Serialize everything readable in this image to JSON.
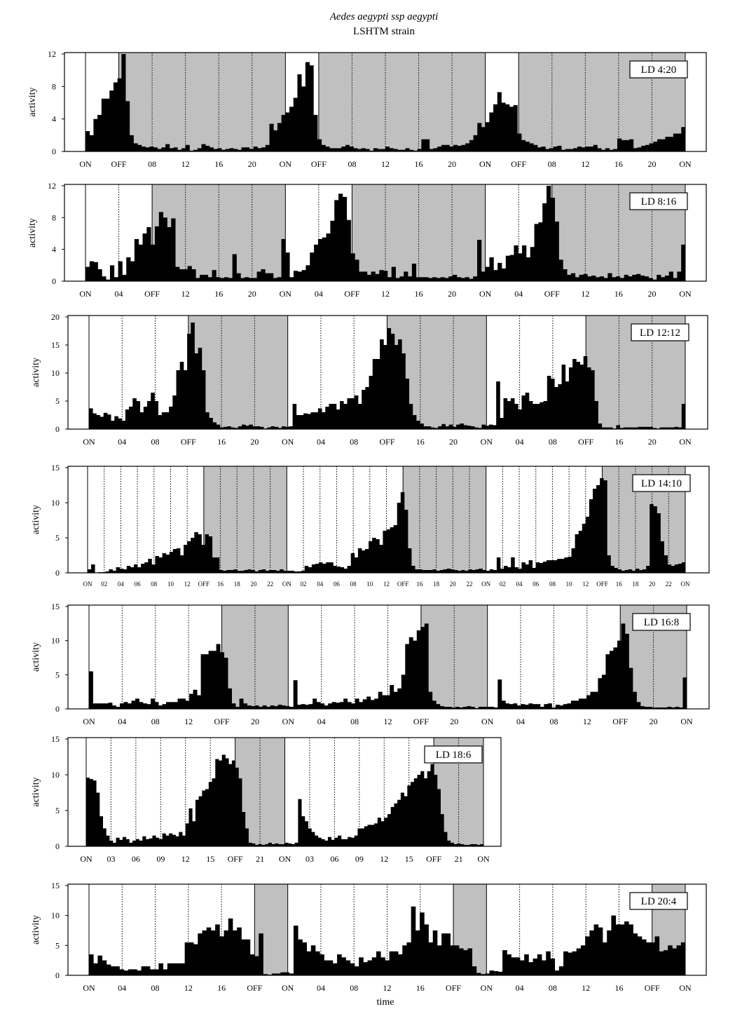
{
  "figure": {
    "title": "Aedes aegypti ssp aegypti",
    "subtitle": "LSHTM strain",
    "xlabel": "time",
    "ylabel": "activity"
  },
  "colors": {
    "dark_phase": "#c0c0c0",
    "bars": "#000000",
    "light_phase": "#ffffff"
  },
  "chart_data": [
    {
      "type": "bar",
      "label": "LD 4:20",
      "light_hours": 4,
      "days": 3,
      "ylim": [
        0,
        12
      ],
      "yticks": [
        0,
        4,
        8,
        12
      ],
      "vline_style": {
        "on_off": "solid",
        "others": "dotted"
      },
      "xticks": [
        "ON",
        "OFF",
        "08",
        "12",
        "16",
        "20",
        "ON",
        "OFF",
        "08",
        "12",
        "16",
        "20",
        "ON",
        "OFF",
        "08",
        "12",
        "16",
        "20",
        "ON"
      ],
      "values": [
        2.5,
        2,
        4,
        4.5,
        6.5,
        6.5,
        7.5,
        8.5,
        9,
        12,
        6.2,
        2,
        1,
        0.8,
        0.6,
        0.5,
        0.6,
        0.5,
        0.3,
        0.5,
        0.9,
        0.4,
        0.5,
        0.2,
        0.4,
        0.8,
        0.1,
        0.2,
        0.4,
        0.9,
        0.7,
        0.5,
        0.3,
        0.4,
        0.2,
        0.3,
        0.4,
        0.3,
        0.2,
        0.5,
        0.5,
        0.3,
        0.6,
        0.4,
        0.5,
        0.8,
        3.4,
        2.6,
        3.5,
        4.5,
        4.8,
        5.5,
        6.6,
        9.5,
        8,
        11,
        10.6,
        4.5,
        1.5,
        0.8,
        0.6,
        0.4,
        0.4,
        0.4,
        0.6,
        0.8,
        0.6,
        0.4,
        0.3,
        0.4,
        0.3,
        0.1,
        0.4,
        0.3,
        0.3,
        0.6,
        0.4,
        0.3,
        0.2,
        0.2,
        0.4,
        0.2,
        0.1,
        0.3,
        1.5,
        1.5,
        0.3,
        0.4,
        0.6,
        0.8,
        0.8,
        0.6,
        0.8,
        0.7,
        0.8,
        1,
        1.4,
        2,
        3.5,
        3,
        3.6,
        4.8,
        5.8,
        7.3,
        6,
        5.8,
        5.5,
        5.7,
        2.2,
        1.4,
        1.2,
        1,
        0.8,
        0.5,
        0.6,
        0.3,
        0.4,
        0.6,
        0.7,
        0.2,
        0.3,
        0.3,
        0.4,
        0.6,
        0.5,
        0.6,
        0.6,
        0.8,
        0.4,
        0.2,
        0.4,
        0.2,
        0.3,
        1.6,
        1.4,
        1.4,
        1.5,
        0.4,
        0.5,
        0.7,
        0.8,
        1,
        1.2,
        1.5,
        1.5,
        1.8,
        1.8,
        2.2,
        2.2,
        3
      ]
    },
    {
      "type": "bar",
      "label": "LD 8:16",
      "light_hours": 8,
      "days": 3,
      "ylim": [
        0,
        12
      ],
      "yticks": [
        0,
        4,
        8,
        12
      ],
      "xticks": [
        "ON",
        "04",
        "OFF",
        "12",
        "16",
        "20",
        "ON",
        "04",
        "OFF",
        "12",
        "16",
        "20",
        "ON",
        "04",
        "OFF",
        "12",
        "16",
        "20",
        "ON"
      ],
      "values": [
        1.8,
        2.5,
        2.4,
        1.5,
        0.6,
        0.2,
        2,
        0.5,
        2.5,
        0.8,
        3,
        2.5,
        5.3,
        4.6,
        6,
        6.8,
        4.6,
        6.9,
        8.7,
        8,
        6.8,
        7.9,
        1.8,
        1.5,
        1.5,
        1.9,
        1.5,
        0.4,
        0.8,
        0.8,
        0.5,
        1.4,
        0.5,
        0.4,
        0.5,
        0.4,
        3.4,
        1,
        0.4,
        0.5,
        0.4,
        0.4,
        1.2,
        1.5,
        1,
        1,
        0.4,
        0.5,
        5.3,
        3.6,
        0.5,
        1.3,
        1.2,
        1.4,
        2,
        3.6,
        4.6,
        5.3,
        5.5,
        6,
        7.6,
        10.2,
        11,
        10.6,
        7.7,
        3.5,
        2.7,
        1.2,
        1.2,
        0.8,
        1.2,
        0.9,
        1.4,
        1.3,
        0.5,
        1.8,
        0.4,
        0.6,
        1.2,
        0.6,
        2.2,
        0.5,
        0.5,
        0.5,
        0.4,
        0.5,
        0.4,
        0.5,
        0.4,
        0.6,
        0.8,
        0.5,
        0.4,
        0.5,
        0.3,
        0.6,
        5.2,
        1.2,
        1.8,
        3,
        1.4,
        2.3,
        1.6,
        3.2,
        3.3,
        4.5,
        3.5,
        4.5,
        3,
        4.3,
        7.2,
        7.4,
        9.8,
        12,
        10.5,
        7.5,
        2.7,
        1.5,
        0.8,
        1,
        0.5,
        0.8,
        0.9,
        0.6,
        0.7,
        0.5,
        0.6,
        0.4,
        1,
        0.5,
        0.6,
        0.4,
        0.8,
        0.6,
        0.8,
        0.9,
        0.7,
        0.6,
        0.4,
        0.2,
        0.8,
        0.5,
        0.7,
        1.2,
        0.4,
        1.2,
        4.6
      ]
    },
    {
      "type": "bar",
      "label": "LD 12:12",
      "light_hours": 12,
      "days": 3,
      "ylim": [
        0,
        20
      ],
      "yticks": [
        0,
        5,
        10,
        15,
        20
      ],
      "xticks": [
        "ON",
        "04",
        "08",
        "OFF",
        "16",
        "20",
        "ON",
        "04",
        "08",
        "OFF",
        "16",
        "20",
        "ON",
        "04",
        "08",
        "OFF",
        "16",
        "20",
        "ON"
      ],
      "values": [
        3.7,
        2.8,
        2.5,
        2.2,
        2.9,
        2.6,
        1.5,
        2.3,
        1.9,
        1.5,
        3.5,
        4,
        5.5,
        5,
        3,
        4,
        5,
        6.5,
        5,
        2.5,
        3,
        3,
        4,
        6,
        10.5,
        12,
        10.5,
        17,
        19,
        13.5,
        14.5,
        10.5,
        3,
        2,
        1.2,
        0.8,
        0.3,
        0.4,
        0.5,
        0.3,
        0.2,
        0.5,
        0.8,
        0.6,
        0.8,
        0.5,
        0.5,
        0.4,
        0.1,
        0.3,
        0.5,
        0.4,
        0.2,
        0.5,
        0.4,
        0.5,
        4.5,
        2.5,
        2.5,
        2.8,
        2.7,
        3,
        3,
        3.7,
        3,
        4,
        4.5,
        4.5,
        3.5,
        5,
        4.5,
        5.5,
        5.5,
        6,
        4.5,
        7,
        7.5,
        9.5,
        12.5,
        12.5,
        16,
        15,
        18,
        17,
        15,
        16,
        13.5,
        9,
        4.5,
        2.5,
        1.5,
        1,
        0.5,
        0.5,
        0.3,
        0.2,
        0.5,
        0.9,
        0.5,
        0.8,
        0.4,
        0.8,
        1,
        0.7,
        0.6,
        0.5,
        0.3,
        0.2,
        0.8,
        0.6,
        0.8,
        0.7,
        8.5,
        2,
        5.5,
        5,
        5.5,
        4.5,
        3.5,
        6,
        6.5,
        5,
        4.5,
        4.5,
        4.8,
        5,
        9.5,
        9,
        7.5,
        8,
        11.5,
        8.5,
        11,
        12.5,
        12,
        11.5,
        13,
        11,
        10.5,
        5,
        1,
        0.3,
        0.3,
        0.3,
        0.1,
        0.7,
        0.2,
        0.3,
        0.3,
        0.3,
        0.3,
        0.4,
        0.4,
        0.4,
        0.4,
        0.2,
        0.1,
        0.3,
        0.3,
        0.3,
        0.3,
        0.4,
        0.3,
        4.5
      ]
    },
    {
      "type": "bar",
      "label": "LD 14:10",
      "light_hours": 14,
      "days": 3,
      "ylim": [
        0,
        15
      ],
      "yticks": [
        0,
        5,
        10,
        15
      ],
      "xticks": [
        "ON",
        "02",
        "04",
        "06",
        "08",
        "10",
        "12",
        "OFF",
        "16",
        "18",
        "20",
        "22",
        "ON",
        "02",
        "04",
        "06",
        "08",
        "10",
        "12",
        "OFF",
        "16",
        "18",
        "20",
        "22",
        "ON",
        "02",
        "04",
        "06",
        "08",
        "10",
        "12",
        "OFF",
        "16",
        "18",
        "20",
        "22",
        "ON"
      ],
      "values": [
        0.5,
        1.2,
        0,
        0.1,
        0.1,
        0.2,
        0.5,
        0.3,
        0.8,
        0.6,
        0.5,
        1,
        0.8,
        1.2,
        0.8,
        1.3,
        1.5,
        2,
        1.2,
        2.4,
        2.2,
        2.8,
        2.6,
        3,
        3.4,
        3.5,
        2.5,
        4,
        4.5,
        5,
        5.8,
        5.5,
        4,
        5.5,
        5.2,
        2.2,
        2.2,
        0.4,
        0.3,
        0.4,
        0.4,
        0.5,
        0.3,
        0.3,
        0.4,
        0.5,
        0.4,
        0.2,
        0.4,
        0.5,
        0.3,
        0.4,
        0.4,
        0.3,
        0.5,
        0.3,
        0.3,
        0.3,
        0.2,
        0.2,
        0.3,
        1,
        0.8,
        1.2,
        1.3,
        1.5,
        1.3,
        1.5,
        1.5,
        1,
        0.9,
        0.8,
        0.6,
        1,
        2.8,
        2.2,
        3.5,
        3.2,
        3.4,
        4.5,
        5,
        4.8,
        4,
        6,
        6.2,
        6.5,
        6.8,
        10,
        11.5,
        9,
        3.5,
        1,
        0.5,
        0.5,
        0.4,
        0.4,
        0.4,
        0.5,
        0.3,
        0.4,
        0.5,
        0.6,
        0.5,
        0.4,
        0.3,
        0.4,
        0.3,
        0.5,
        0.4,
        0.5,
        0.6,
        0.4,
        0.3,
        0.5,
        0.4,
        2.2,
        0.6,
        1,
        0.8,
        2.2,
        0.8,
        0.6,
        1.5,
        1.2,
        1.8,
        0.7,
        1.5,
        1.4,
        1.6,
        1.8,
        1.8,
        1.8,
        2,
        2,
        2.2,
        2.3,
        3.5,
        5.5,
        6,
        7,
        8,
        10.5,
        12,
        12.5,
        13.5,
        13.2,
        2.5,
        1,
        0.7,
        0.5,
        0.3,
        0.4,
        0.5,
        0.3,
        0.6,
        0.4,
        0.5,
        1,
        9.8,
        9.5,
        8.5,
        4.5,
        2.5,
        1.2,
        1,
        1.2,
        1.3,
        1.5
      ]
    },
    {
      "type": "bar",
      "label": "LD 16:8",
      "light_hours": 16,
      "days": 3,
      "ylim": [
        0,
        15
      ],
      "yticks": [
        0,
        5,
        10,
        15
      ],
      "xticks": [
        "ON",
        "04",
        "08",
        "12",
        "OFF",
        "20",
        "ON",
        "04",
        "08",
        "12",
        "OFF",
        "20",
        "ON",
        "04",
        "08",
        "12",
        "OFF",
        "20",
        "ON"
      ],
      "values": [
        5.5,
        0.8,
        0.8,
        0.8,
        0.8,
        0.9,
        0.5,
        0.3,
        0.8,
        1,
        0.8,
        1.2,
        1.5,
        1,
        0.8,
        0.7,
        1.5,
        1,
        0.5,
        0.7,
        1,
        1,
        1,
        1.5,
        1.5,
        1.2,
        2.2,
        2.8,
        2,
        8,
        8,
        8.5,
        8.5,
        9.5,
        8.3,
        7.5,
        3,
        0.8,
        0.3,
        1.5,
        0.8,
        0.5,
        0.4,
        0.5,
        0.3,
        0.5,
        0.3,
        0.5,
        0.4,
        0.6,
        0.5,
        0.4,
        0.3,
        4.2,
        0.6,
        0.7,
        0.6,
        0.7,
        1.5,
        1,
        0.8,
        0.5,
        0.8,
        1,
        0.9,
        1,
        1.5,
        1,
        0.8,
        1.5,
        1,
        1.4,
        1.8,
        1.3,
        1.5,
        2.5,
        2,
        2,
        3.5,
        2.5,
        3,
        5,
        9.5,
        10.5,
        10,
        11.5,
        12,
        12.5,
        2.5,
        1.2,
        0.7,
        0.4,
        0.3,
        0.3,
        0.2,
        0.3,
        0.2,
        0.3,
        0.4,
        0.3,
        0.1,
        0.3,
        0.3,
        0.3,
        0.3,
        0.2,
        4.3,
        1.2,
        0.8,
        0.7,
        0.8,
        0.5,
        0.7,
        0.6,
        0.8,
        0.7,
        0.7,
        0.3,
        0.7,
        0.8,
        0.2,
        0.6,
        0.5,
        0.7,
        0.8,
        1.2,
        1.2,
        1.5,
        1.5,
        2,
        2.5,
        2.5,
        4.5,
        5,
        8,
        8.5,
        9,
        10,
        12.5,
        11,
        6,
        2.5,
        1,
        0.4,
        0.3,
        0.3,
        0.2,
        0.2,
        0.2,
        0.2,
        0.3,
        0.2,
        0.3,
        0.2,
        4.6
      ]
    },
    {
      "type": "bar",
      "label": "LD 18:6",
      "light_hours": 18,
      "days": 2,
      "ylim": [
        0,
        15
      ],
      "yticks": [
        0,
        5,
        10,
        15
      ],
      "xticks": [
        "ON",
        "03",
        "06",
        "09",
        "12",
        "15",
        "OFF",
        "21",
        "ON",
        "03",
        "06",
        "09",
        "12",
        "15",
        "OFF",
        "21",
        "ON"
      ],
      "values": [
        9.6,
        9.4,
        9.2,
        7.5,
        4.2,
        2.5,
        1.5,
        0.8,
        0.5,
        1.2,
        0.9,
        1.3,
        1,
        0.5,
        0.8,
        1,
        0.8,
        1.4,
        1,
        1.1,
        1.5,
        1.2,
        1,
        1.8,
        1.5,
        1.8,
        1.6,
        1.4,
        2,
        1.5,
        3.2,
        5.3,
        3.5,
        6.5,
        7,
        7.8,
        8,
        9,
        9.5,
        12.2,
        12,
        12.8,
        12.3,
        11.5,
        12,
        11,
        9.5,
        4.8,
        2.5,
        0.5,
        0.4,
        0.2,
        0.3,
        0.2,
        0.3,
        0.5,
        0.3,
        0.4,
        0.3,
        0.3,
        0.5,
        0.4,
        0.3,
        0.5,
        6.6,
        4.2,
        3.5,
        2.5,
        2,
        1.5,
        1.2,
        1,
        0.8,
        1.3,
        0.9,
        1.2,
        1.5,
        1,
        1,
        1.3,
        1.2,
        1.5,
        2.5,
        2.5,
        2.8,
        3,
        3,
        3.2,
        4,
        3.5,
        4,
        4.5,
        5.5,
        6,
        6.5,
        7.5,
        7,
        8.5,
        9,
        9.5,
        10,
        10.5,
        9.5,
        10.5,
        11.5,
        10,
        8,
        4.5,
        2,
        0.8,
        0.5,
        0.3,
        0.4,
        0.3,
        0.2,
        0.2,
        0.3,
        0.3,
        0.2,
        0.3
      ]
    },
    {
      "type": "bar",
      "label": "LD 20:4",
      "light_hours": 20,
      "days": 3,
      "ylim": [
        0,
        15
      ],
      "yticks": [
        0,
        5,
        10,
        15
      ],
      "xticks": [
        "ON",
        "04",
        "08",
        "12",
        "16",
        "OFF",
        "ON",
        "04",
        "08",
        "12",
        "16",
        "OFF",
        "ON",
        "04",
        "08",
        "12",
        "16",
        "OFF",
        "ON"
      ],
      "values": [
        3.5,
        2,
        3.3,
        2.5,
        1.8,
        1.5,
        1.5,
        1,
        0.8,
        1,
        1,
        0.8,
        1.5,
        1.5,
        1,
        1,
        2,
        1,
        2,
        2,
        2,
        2,
        5.5,
        5.5,
        5.2,
        7,
        7.5,
        8,
        7.5,
        8.5,
        6.5,
        7.5,
        9.5,
        7.5,
        8,
        6,
        6,
        3.5,
        3.2,
        7,
        0.2,
        0.1,
        0.3,
        0.3,
        0.5,
        0.5,
        0.3,
        8.3,
        6,
        5.5,
        4,
        5,
        4,
        3.5,
        2.5,
        2.5,
        2,
        3.5,
        3,
        2.5,
        2,
        1.5,
        3,
        2.2,
        2.5,
        3,
        4,
        3,
        2.5,
        4,
        4,
        3.5,
        5,
        5.5,
        11.5,
        7.5,
        10.5,
        8.5,
        5.5,
        7.5,
        5,
        7,
        7,
        5,
        5,
        4.5,
        4.2,
        4.5,
        1.5,
        0.4,
        0.2,
        0.3,
        0.8,
        0.7,
        0.6,
        4.2,
        3.5,
        3,
        3,
        2.5,
        3.5,
        2.2,
        2.8,
        3.5,
        2.5,
        4,
        2.8,
        0.8,
        1.5,
        4,
        3.8,
        4,
        4.5,
        5,
        6.5,
        7.5,
        8.5,
        8,
        5.5,
        7.5,
        10,
        8.5,
        8.5,
        9,
        8.5,
        7,
        6.5,
        6,
        5.5,
        5.5,
        6.5,
        4,
        4.2,
        5,
        4.5,
        5,
        5.5
      ]
    }
  ]
}
